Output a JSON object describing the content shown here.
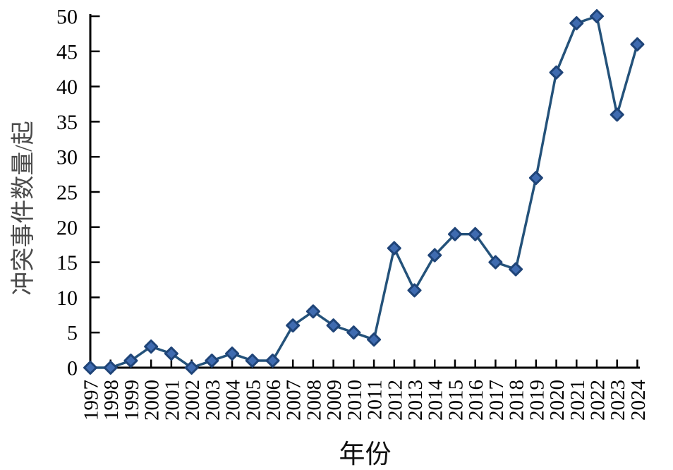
{
  "chart_data": {
    "type": "line",
    "title": "",
    "xlabel": "年份",
    "ylabel": "冲突事件数量/起",
    "categories": [
      "1997",
      "1998",
      "1999",
      "2000",
      "2001",
      "2002",
      "2003",
      "2004",
      "2005",
      "2006",
      "2007",
      "2008",
      "2009",
      "2010",
      "2011",
      "2012",
      "2013",
      "2014",
      "2015",
      "2016",
      "2017",
      "2018",
      "2019",
      "2020",
      "2021",
      "2022",
      "2023",
      "2024"
    ],
    "values": [
      0,
      0,
      1,
      3,
      2,
      0,
      1,
      2,
      1,
      1,
      6,
      8,
      6,
      5,
      4,
      17,
      11,
      16,
      19,
      19,
      15,
      14,
      27,
      42,
      49,
      50,
      36,
      46
    ],
    "ylim": [
      0,
      50
    ],
    "y_ticks": [
      0,
      5,
      10,
      15,
      20,
      25,
      30,
      35,
      40,
      45,
      50
    ],
    "grid": false,
    "legend_position": "none",
    "marker": "diamond",
    "colors": {
      "line": "#24527A",
      "marker_fill": "#3F6BB0",
      "marker_border": "#1F4478",
      "axis": "#000000"
    }
  }
}
